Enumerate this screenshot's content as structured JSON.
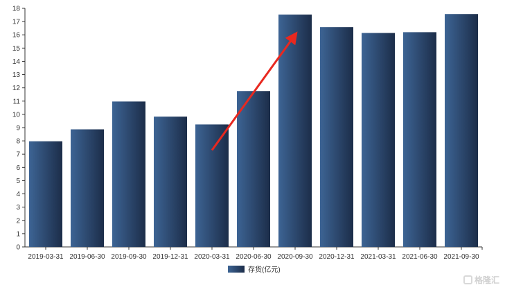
{
  "chart_data": {
    "type": "bar",
    "categories": [
      "2019-03-31",
      "2019-06-30",
      "2019-09-30",
      "2019-12-31",
      "2020-03-31",
      "2020-06-30",
      "2020-09-30",
      "2020-12-31",
      "2021-03-31",
      "2021-06-30",
      "2021-09-30"
    ],
    "series": [
      {
        "name": "存货(亿元)",
        "values": [
          7.97,
          8.87,
          10.97,
          9.83,
          9.24,
          11.76,
          17.53,
          16.58,
          16.14,
          16.2,
          17.57
        ]
      }
    ],
    "ylim": [
      0,
      18
    ],
    "yticks": [
      0,
      1,
      2,
      3,
      4,
      5,
      6,
      7,
      8,
      9,
      10,
      11,
      12,
      13,
      14,
      15,
      16,
      17,
      18
    ],
    "grid": false,
    "legend_position": "bottom-center",
    "bar_color_light": "#3d6494",
    "bar_color_dark": "#1c2d49",
    "annotation": {
      "type": "arrow",
      "color": "#e8281f",
      "from": [
        "2020-03-31",
        7.3
      ],
      "to": [
        "2020-09-30",
        16.0
      ]
    }
  },
  "watermark": {
    "text": "格隆汇"
  }
}
